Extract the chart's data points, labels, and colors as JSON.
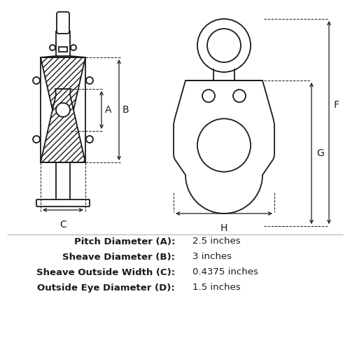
{
  "bg_color": "#ffffff",
  "line_color": "#1a1a1a",
  "spec_labels": [
    "Pitch Diameter (A):",
    "Sheave Diameter (B):",
    "Sheave Outside Width (C):",
    "Outside Eye Diameter (D):"
  ],
  "spec_values": [
    "2.5 inches",
    "3 inches",
    "0.4375 inches",
    "1.5 inches"
  ]
}
